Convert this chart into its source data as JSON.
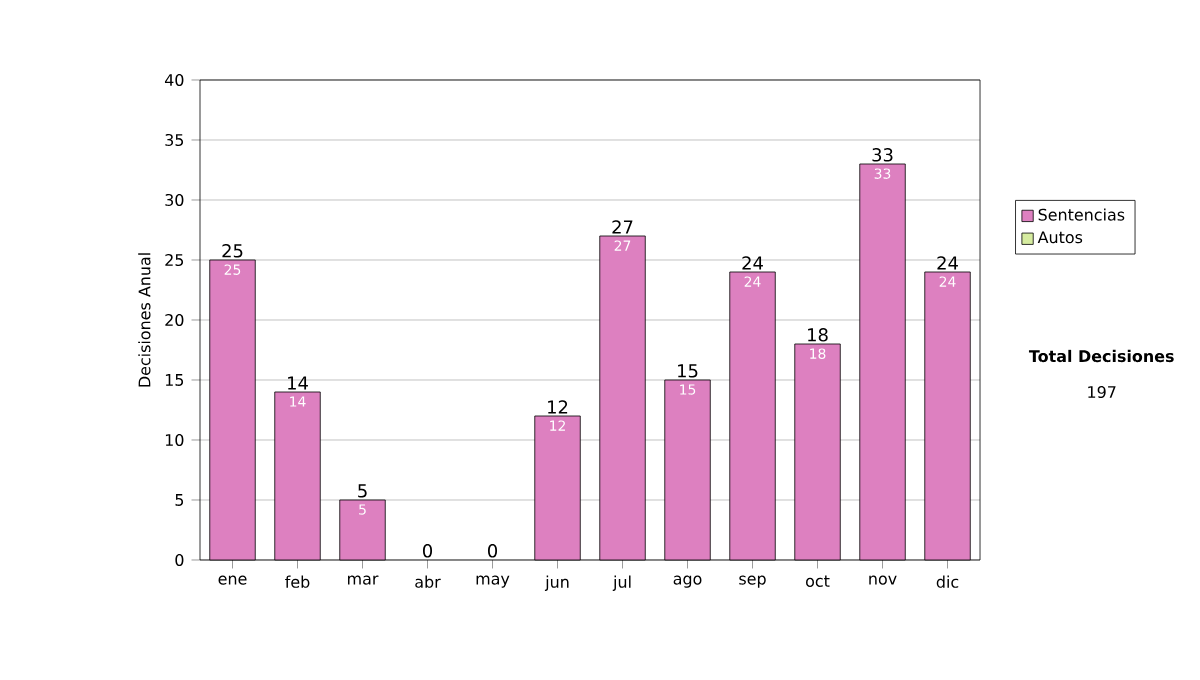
{
  "chart_data": {
    "type": "bar",
    "stacked": true,
    "ylabel": "Decisiones Anual",
    "categories": [
      "ene",
      "feb",
      "mar",
      "abr",
      "may",
      "jun",
      "jul",
      "ago",
      "sep",
      "oct",
      "nov",
      "dic"
    ],
    "series": [
      {
        "name": "Sentencias",
        "color": "#dd80c0",
        "values": [
          25,
          14,
          5,
          0,
          0,
          12,
          27,
          15,
          24,
          18,
          33,
          24
        ],
        "value_labels": [
          "25",
          "14",
          "5",
          null,
          null,
          "12",
          "27",
          "15",
          "24",
          "18",
          "33",
          "24"
        ]
      },
      {
        "name": "Autos",
        "color": "#d6eca0",
        "values": [
          0,
          0,
          0,
          0,
          0,
          0,
          0,
          0,
          0,
          0,
          0,
          0
        ]
      }
    ],
    "totals": [
      "25",
      "14",
      "5",
      "0",
      "0",
      "12",
      "27",
      "15",
      "24",
      "18",
      "33",
      "24"
    ],
    "ylim": [
      0,
      40
    ],
    "yticks": [
      0,
      5,
      10,
      15,
      20,
      25,
      30,
      35,
      40
    ],
    "grid": "y",
    "legend": "right",
    "annotations": [
      "Total Decisiones",
      "197"
    ]
  }
}
